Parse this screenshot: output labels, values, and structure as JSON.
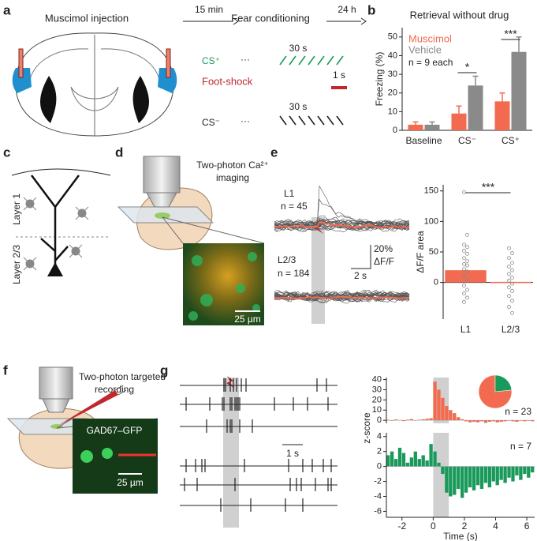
{
  "panel_labels": [
    "a",
    "b",
    "c",
    "d",
    "e",
    "f",
    "g"
  ],
  "a": {
    "step1": "Muscimol injection",
    "delay1": "15 min",
    "step2": "Fear conditioning",
    "delay2": "24 h",
    "cs_plus": "CS⁺",
    "cs_plus_dots": "···",
    "cs_plus_duration": "30 s",
    "footshock": "Foot-shock",
    "shock_duration": "1 s",
    "cs_minus_duration": "30 s",
    "cs_minus": "CS⁻",
    "cs_minus_dots": "···"
  },
  "c": {
    "layer1": "Layer 1",
    "layer23": "Layer 2/3"
  },
  "d": {
    "title_line1": "Two-photon Ca²⁺",
    "title_line2": "imaging",
    "scale": "25 µm"
  },
  "e": {
    "l1": "L1",
    "l1_n": "n = 45",
    "l23": "L2/3",
    "l23_n": "n = 184",
    "scale_y": "20%",
    "scale_y_unit": "ΔF/F",
    "scale_x": "2 s"
  },
  "f": {
    "title_line1": "Two-photon targeted",
    "title_line2": "recording",
    "label": "GAD67–GFP",
    "scale": "25 µm"
  },
  "g": {
    "scale": "1 s"
  },
  "chart_data": [
    {
      "type": "bar",
      "title": "Retrieval without drug",
      "categories": [
        "Baseline",
        "CS⁻",
        "CS⁺"
      ],
      "series": [
        {
          "name": "Muscimol",
          "color": "#f26a4f",
          "values": [
            3,
            9,
            15.5
          ],
          "errors": [
            1.5,
            4,
            4.5
          ]
        },
        {
          "name": "Vehicle",
          "color": "#8a8a8a",
          "values": [
            3,
            24,
            42
          ],
          "errors": [
            1.5,
            5,
            8
          ]
        }
      ],
      "ylim": [
        0,
        55
      ],
      "yticks": [
        0,
        10,
        20,
        30,
        40,
        50
      ],
      "ylabel": "Freezing (%)",
      "annotations": [
        "n = 9 each"
      ],
      "significance": [
        "*",
        "***"
      ]
    },
    {
      "type": "bar",
      "categories": [
        "L1",
        "L2/3"
      ],
      "values": [
        20,
        1
      ],
      "color": "#f26a4f",
      "points": [
        [
          148,
          78,
          62,
          58,
          52,
          47,
          40,
          35,
          30,
          28,
          22,
          18,
          10,
          5,
          -5,
          -12,
          -18,
          -25,
          -32
        ],
        [
          56,
          48,
          40,
          32,
          26,
          20,
          14,
          8,
          3,
          -2,
          -8,
          -14,
          -22,
          -30,
          -40,
          -50
        ]
      ],
      "ylim": [
        -60,
        160
      ],
      "yticks": [
        0,
        50,
        100,
        150
      ],
      "ylabel": "ΔF/F area",
      "significance": [
        "***"
      ]
    },
    {
      "type": "histogram",
      "bins": [
        -3,
        -2.75,
        -2.5,
        -2.25,
        -2,
        -1.75,
        -1.5,
        -1.25,
        -1,
        -0.75,
        -0.5,
        -0.25,
        0,
        0.25,
        0.5,
        0.75,
        1,
        1.25,
        1.5,
        1.75,
        2,
        2.25,
        2.5,
        2.75,
        3,
        3.25,
        3.5,
        3.75,
        4,
        4.25,
        4.5,
        4.75,
        5,
        5.25,
        5.5,
        5.75,
        6,
        6.25,
        6.5
      ],
      "values": [
        0.5,
        -0.5,
        0.8,
        0.3,
        -0.8,
        0.6,
        1.2,
        -0.4,
        0.5,
        0.9,
        1.5,
        2,
        38,
        30,
        22,
        14,
        10,
        7,
        3,
        1,
        -1,
        -2,
        -1.5,
        -2,
        -1,
        -2.5,
        -1.5,
        -1,
        -2,
        -1.5,
        -1,
        -0.5,
        -1,
        -1.5,
        -0.5,
        -1,
        -0.5,
        -1
      ],
      "color": "#f26a4f",
      "xlim": [
        -3,
        6.5
      ],
      "ylim": [
        -3,
        42
      ],
      "yticks": [
        0,
        10,
        20,
        30,
        40
      ],
      "shade": [
        0,
        1
      ],
      "annotations": [
        "n = 23"
      ]
    },
    {
      "type": "histogram",
      "bins": [
        -3,
        -2.75,
        -2.5,
        -2.25,
        -2,
        -1.75,
        -1.5,
        -1.25,
        -1,
        -0.75,
        -0.5,
        -0.25,
        0,
        0.25,
        0.5,
        0.75,
        1,
        1.25,
        1.5,
        1.75,
        2,
        2.25,
        2.5,
        2.75,
        3,
        3.25,
        3.5,
        3.75,
        4,
        4.25,
        4.5,
        4.75,
        5,
        5.25,
        5.5,
        5.75,
        6,
        6.25,
        6.5
      ],
      "values": [
        1.5,
        2,
        1,
        2.5,
        1.8,
        0.5,
        1.2,
        2,
        1,
        1.5,
        0.8,
        3,
        2,
        0.5,
        -1,
        -3.5,
        -4,
        -3.8,
        -3,
        -4.2,
        -3.5,
        -2.8,
        -3.2,
        -2.5,
        -3,
        -2.2,
        -2.8,
        -2,
        -2.5,
        -1.8,
        -2.2,
        -1.5,
        -2,
        -1.2,
        -1.8,
        -1,
        -1.5,
        -0.8
      ],
      "color": "#1a9a5a",
      "xlim": [
        -3,
        6.5
      ],
      "ylim": [
        -6.8,
        4.5
      ],
      "yticks": [
        -6,
        -4,
        -2,
        0,
        2,
        4
      ],
      "xticks": [
        -2,
        0,
        2,
        4,
        6
      ],
      "xlabel": "Time (s)",
      "ylabel": "z-score",
      "shade": [
        0,
        1
      ],
      "annotations": [
        "n = 7"
      ]
    },
    {
      "type": "pie",
      "values": [
        23,
        7
      ],
      "colors": [
        "#f26a4f",
        "#1a9a5a"
      ]
    }
  ]
}
